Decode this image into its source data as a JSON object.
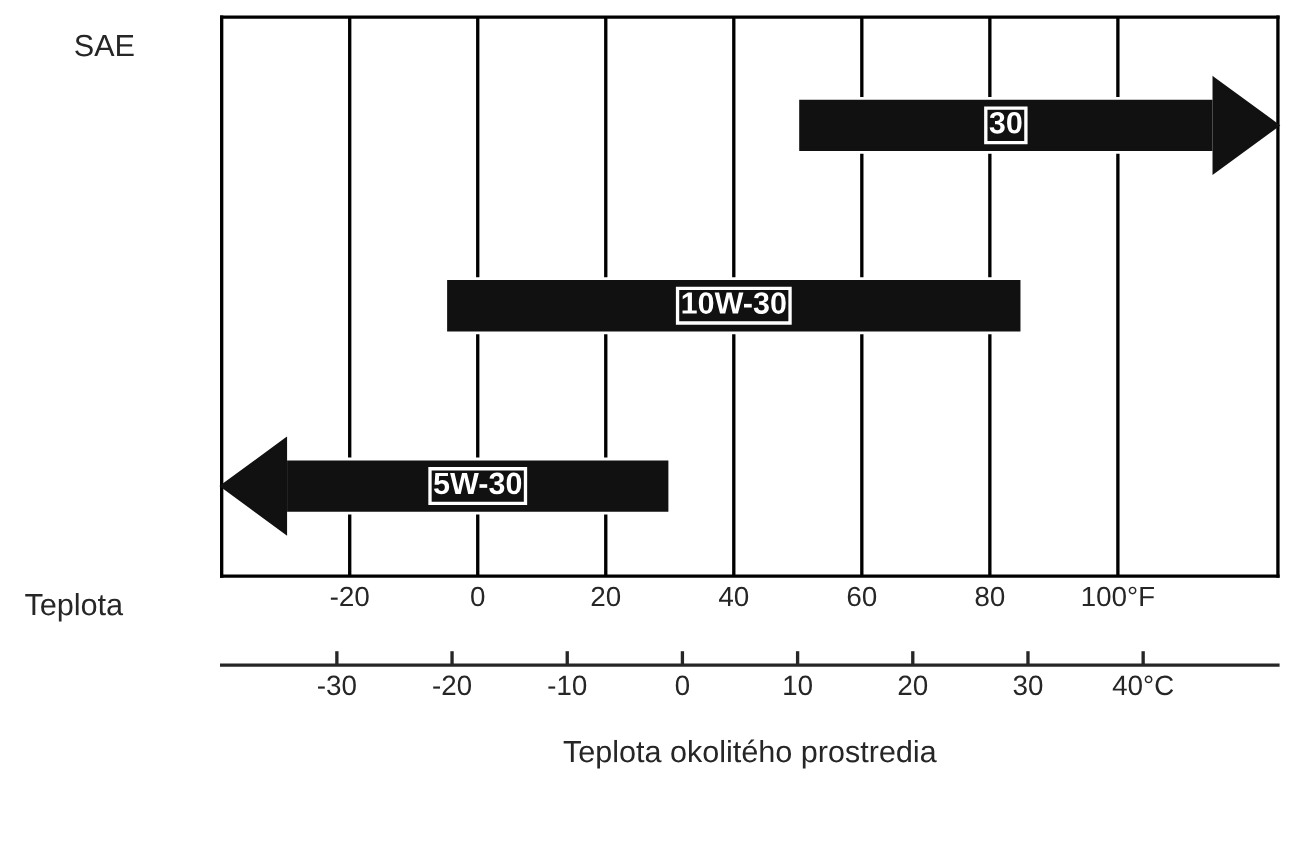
{
  "chart_data": {
    "type": "bar",
    "orientation": "horizontal",
    "categories": [
      "30",
      "10W-30",
      "5W-30"
    ],
    "base": [
      50,
      -5,
      -30
    ],
    "values": [
      65,
      90,
      60
    ],
    "color": "#111111",
    "xlim": [
      -40,
      125
    ],
    "xticks": [
      -20,
      0,
      20,
      40,
      60,
      80,
      {
        "value": 100,
        "label": "100°F"
      }
    ],
    "x2lim": [
      -40,
      51.7
    ],
    "x2ticks": [
      -30,
      -20,
      -10,
      0,
      10,
      20,
      30,
      {
        "value": 40,
        "label": "40°C"
      }
    ],
    "xlabel": "Teplota",
    "x2label": "Teplota okolitého prostredia",
    "ylabel": "SAE",
    "grid": "x",
    "tick_labels": "x"
  }
}
